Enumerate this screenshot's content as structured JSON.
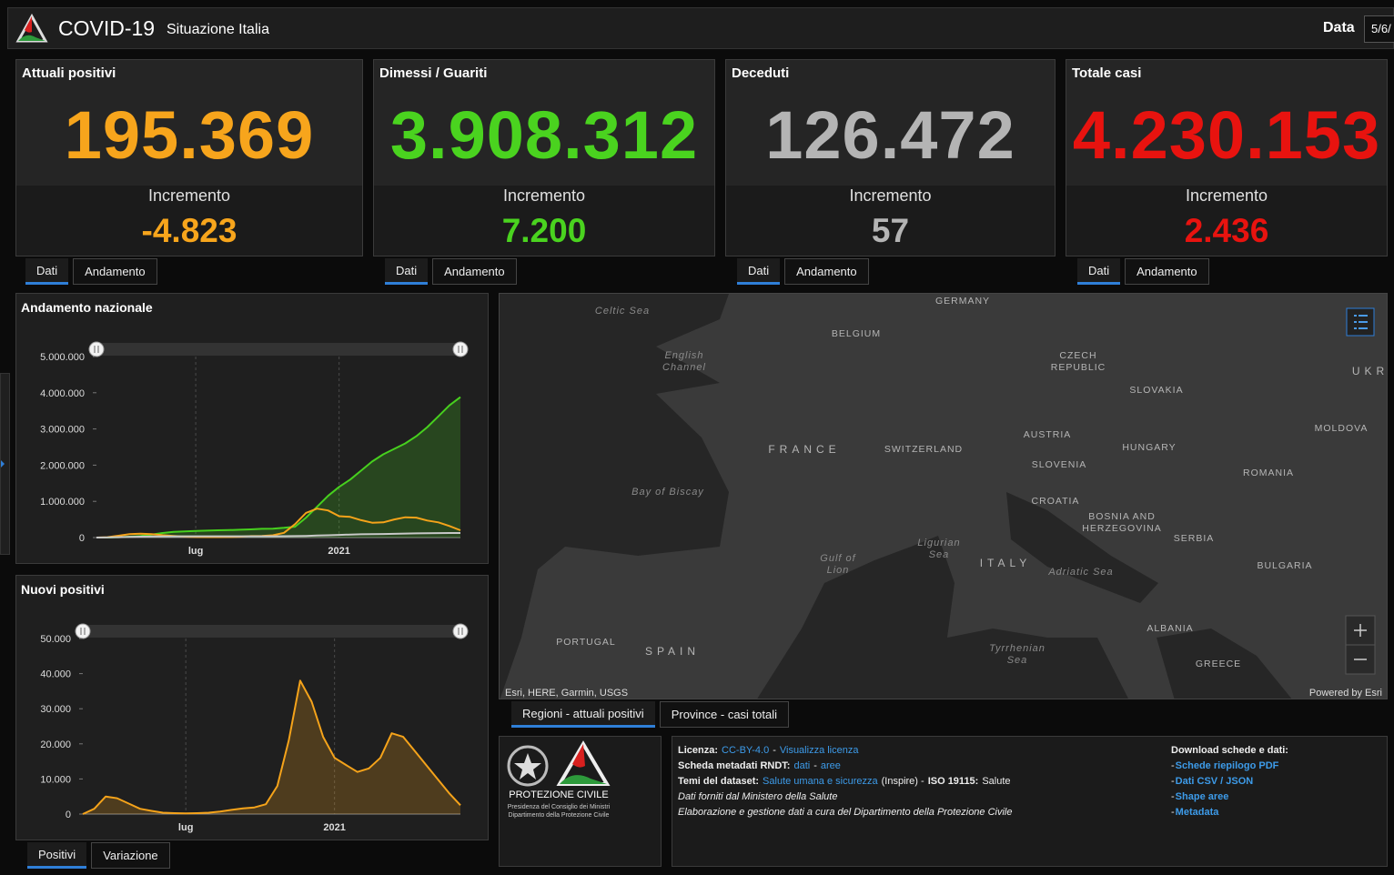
{
  "header": {
    "title": "COVID-19",
    "subtitle": "Situazione Italia",
    "date_label": "Data",
    "date_value": "5/6/"
  },
  "cards": [
    {
      "title": "Attuali positivi",
      "value": "195.369",
      "increment_label": "Incremento",
      "increment": "-4.823",
      "color": "#f7a51c",
      "tabs": [
        "Dati",
        "Andamento"
      ],
      "active_tab": 0
    },
    {
      "title": "Dimessi / Guariti",
      "value": "3.908.312",
      "increment_label": "Incremento",
      "increment": "7.200",
      "color": "#4ad31f",
      "tabs": [
        "Dati",
        "Andamento"
      ],
      "active_tab": 0
    },
    {
      "title": "Deceduti",
      "value": "126.472",
      "increment_label": "Incremento",
      "increment": "57",
      "color": "#b4b4b4",
      "tabs": [
        "Dati",
        "Andamento"
      ],
      "active_tab": 0
    },
    {
      "title": "Totale casi",
      "value": "4.230.153",
      "increment_label": "Incremento",
      "increment": "2.436",
      "color": "#e8130f",
      "tabs": [
        "Dati",
        "Andamento"
      ],
      "active_tab": 0
    }
  ],
  "chart_data": [
    {
      "type": "line",
      "title": "Andamento nazionale",
      "categories": [
        null,
        null,
        null,
        null,
        null,
        null,
        null,
        null,
        null,
        "lug",
        null,
        null,
        null,
        null,
        null,
        null,
        null,
        null,
        null,
        null,
        null,
        null,
        "2021",
        null,
        null,
        null,
        null,
        null,
        null,
        null,
        null,
        null,
        null,
        null
      ],
      "ylim": [
        0,
        5000000
      ],
      "yticks": [
        0,
        {
          "value": 1000000,
          "label": "1.000.000"
        },
        {
          "value": 2000000,
          "label": "2.000.000"
        },
        {
          "value": 3000000,
          "label": "3.000.000"
        },
        {
          "value": 4000000,
          "label": "4.000.000"
        },
        {
          "value": 5000000,
          "label": "5.000.000"
        }
      ],
      "grid": true,
      "series": [
        {
          "color": "#47d01e",
          "area": true,
          "values": [
            0,
            1000,
            10000,
            25000,
            45000,
            80000,
            125000,
            155000,
            170000,
            180000,
            190000,
            200000,
            205000,
            215000,
            225000,
            240000,
            245000,
            270000,
            300000,
            550000,
            850000,
            1150000,
            1400000,
            1600000,
            1850000,
            2100000,
            2300000,
            2450000,
            2600000,
            2800000,
            3050000,
            3350000,
            3650000,
            3880000
          ]
        },
        {
          "color": "#f5a31a",
          "area": false,
          "values": [
            300,
            10000,
            50000,
            95000,
            105000,
            95000,
            65000,
            45000,
            25000,
            16000,
            13000,
            13000,
            16000,
            22000,
            40000,
            45000,
            62000,
            130000,
            370000,
            680000,
            800000,
            750000,
            590000,
            570000,
            480000,
            410000,
            420000,
            500000,
            560000,
            550000,
            470000,
            420000,
            320000,
            200000
          ]
        },
        {
          "color": "#c8c8c8",
          "area": false,
          "values": [
            7,
            1800,
            11000,
            17000,
            24000,
            28000,
            32000,
            33500,
            34500,
            35000,
            35100,
            35300,
            35500,
            35700,
            36000,
            36200,
            36300,
            37300,
            40000,
            46000,
            55000,
            62000,
            73000,
            82000,
            90000,
            95000,
            99000,
            103000,
            110000,
            116000,
            120000,
            123000,
            125000,
            126400
          ]
        }
      ]
    },
    {
      "type": "area",
      "title": "Nuovi positivi",
      "categories": [
        null,
        null,
        null,
        null,
        null,
        null,
        null,
        null,
        null,
        "lug",
        null,
        null,
        null,
        null,
        null,
        null,
        null,
        null,
        null,
        null,
        null,
        null,
        "2021",
        null,
        null,
        null,
        null,
        null,
        null,
        null,
        null,
        null,
        null,
        null
      ],
      "ylim": [
        0,
        50000
      ],
      "yticks": [
        0,
        {
          "value": 10000,
          "label": "10.000"
        },
        {
          "value": 20000,
          "label": "20.000"
        },
        {
          "value": 30000,
          "label": "30.000"
        },
        {
          "value": 40000,
          "label": "40.000"
        },
        {
          "value": 50000,
          "label": "50.000"
        }
      ],
      "grid": true,
      "series": [
        {
          "color": "#f5a31a",
          "area": true,
          "values": [
            0,
            1500,
            5000,
            4500,
            3000,
            1500,
            900,
            400,
            250,
            190,
            250,
            400,
            700,
            1200,
            1600,
            1900,
            2800,
            8000,
            21000,
            38000,
            32000,
            22000,
            16000,
            14000,
            12000,
            13000,
            16000,
            23000,
            22000,
            18000,
            14000,
            10000,
            6000,
            2500
          ]
        }
      ]
    }
  ],
  "chart_tabs": {
    "items": [
      "Positivi",
      "Variazione"
    ],
    "active": 0
  },
  "map": {
    "labels": [
      {
        "lines": [
          "Celtic Sea"
        ],
        "kind": "sea"
      },
      {
        "lines": [
          "GERMANY"
        ],
        "kind": "country"
      },
      {
        "lines": [
          "BELGIUM"
        ],
        "kind": "country"
      },
      {
        "lines": [
          "English",
          "Channel"
        ],
        "kind": "sea"
      },
      {
        "lines": [
          "CZECH",
          "REPUBLIC"
        ],
        "kind": "country"
      },
      {
        "lines": [
          "UKR"
        ],
        "kind": "wide"
      },
      {
        "lines": [
          "SLOVAKIA"
        ],
        "kind": "country"
      },
      {
        "lines": [
          "MOLDOVA"
        ],
        "kind": "country"
      },
      {
        "lines": [
          "AUSTRIA"
        ],
        "kind": "country"
      },
      {
        "lines": [
          "FRANCE"
        ],
        "kind": "wide"
      },
      {
        "lines": [
          "SWITZERLAND"
        ],
        "kind": "country"
      },
      {
        "lines": [
          "HUNGARY"
        ],
        "kind": "country"
      },
      {
        "lines": [
          "SLOVENIA"
        ],
        "kind": "country"
      },
      {
        "lines": [
          "ROMANIA"
        ],
        "kind": "country"
      },
      {
        "lines": [
          "Bay of Biscay"
        ],
        "kind": "sea"
      },
      {
        "lines": [
          "CROATIA"
        ],
        "kind": "country"
      },
      {
        "lines": [
          "BOSNIA AND",
          "HERZEGOVINA"
        ],
        "kind": "country"
      },
      {
        "lines": [
          "SERBIA"
        ],
        "kind": "country"
      },
      {
        "lines": [
          "Ligurian",
          "Sea"
        ],
        "kind": "sea"
      },
      {
        "lines": [
          "Gulf of",
          "Lion"
        ],
        "kind": "sea"
      },
      {
        "lines": [
          "ITALY"
        ],
        "kind": "wide"
      },
      {
        "lines": [
          "Adriatic Sea"
        ],
        "kind": "sea"
      },
      {
        "lines": [
          "BULGARIA"
        ],
        "kind": "country"
      },
      {
        "lines": [
          "ALBANIA"
        ],
        "kind": "country"
      },
      {
        "lines": [
          "PORTUGAL"
        ],
        "kind": "country"
      },
      {
        "lines": [
          "Tyrrhenian",
          "Sea"
        ],
        "kind": "sea"
      },
      {
        "lines": [
          "SPAIN"
        ],
        "kind": "wide"
      },
      {
        "lines": [
          "GREECE"
        ],
        "kind": "country"
      }
    ],
    "attribution": "Esri, HERE, Garmin, USGS",
    "powered": "Powered by Esri",
    "tabs": [
      "Regioni - attuali positivi",
      "Province - casi totali"
    ],
    "active_tab": 0
  },
  "logo": {
    "name": "PROTEZIONE CIVILE",
    "line1": "Presidenza del Consiglio dei Ministri",
    "line2": "Dipartimento della Protezione Civile"
  },
  "info": {
    "lines": [
      [
        {
          "text": "Licenza:",
          "style": "bold"
        },
        {
          "text": "CC-BY-4.0",
          "style": "link"
        },
        {
          "text": "-",
          "style": "plain"
        },
        {
          "text": "Visualizza licenza",
          "style": "link"
        }
      ],
      [
        {
          "text": "Scheda metadati RNDT:",
          "style": "bold"
        },
        {
          "text": "dati",
          "style": "link"
        },
        {
          "text": "-",
          "style": "plain"
        },
        {
          "text": "aree",
          "style": "link"
        }
      ],
      [
        {
          "text": "Temi del dataset:",
          "style": "bold"
        },
        {
          "text": "Salute umana e sicurezza",
          "style": "link"
        },
        {
          "text": "(Inspire) -",
          "style": "plain"
        },
        {
          "text": "ISO 19115:",
          "style": "bold"
        },
        {
          "text": "Salute",
          "style": "plain"
        }
      ],
      [
        {
          "text": "Dati forniti dal Ministero della Salute",
          "style": "italic"
        }
      ],
      [
        {
          "text": "Elaborazione e gestione dati a cura del Dipartimento della Protezione Civile",
          "style": "italic"
        }
      ]
    ],
    "download_title": "Download schede e dati:",
    "bullet": "-",
    "downloads": [
      "Schede riepilogo PDF",
      "Dati CSV / JSON",
      "Shape aree",
      "Metadata"
    ]
  }
}
